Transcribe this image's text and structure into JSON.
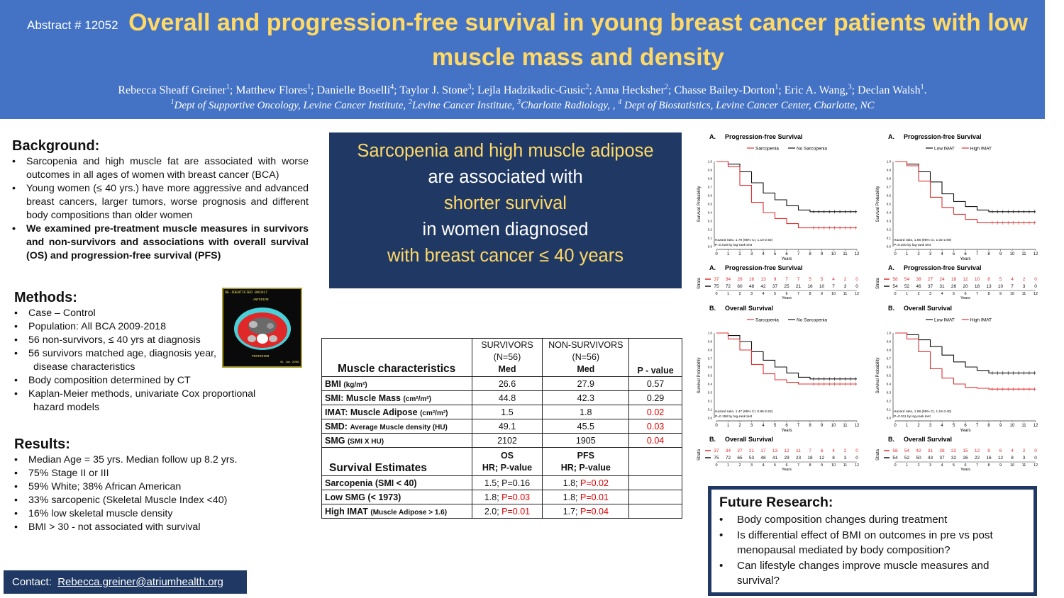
{
  "header": {
    "abstract_no": "Abstract # 12052",
    "title": "Overall and progression-free survival in young breast cancer patients with low muscle mass and density",
    "authors": [
      {
        "name": "Rebecca Sheaff Greiner",
        "sup": "1",
        "sep": "; "
      },
      {
        "name": "Matthew Flores",
        "sup": "1",
        "sep": "; "
      },
      {
        "name": "Danielle Boselli",
        "sup": "4",
        "sep": "; "
      },
      {
        "name": "Taylor J. Stone",
        "sup": "3",
        "sep": "; "
      },
      {
        "name": "Lejla Hadzikadic-Gusic",
        "sup": "2",
        "sep": "; "
      },
      {
        "name": "Anna Hecksher",
        "sup": "2",
        "sep": "; "
      },
      {
        "name": "Chasse Bailey-Dorton",
        "sup": "1",
        "sep": "; "
      },
      {
        "name": "Eric A. Wang,",
        "sup": "3",
        "sep": "; "
      },
      {
        "name": "Declan Walsh",
        "sup": "1",
        "sep": "."
      }
    ],
    "affiliations": [
      {
        "sup": "1",
        "text": "Dept of Supportive Oncology, Levine Cancer Institute, "
      },
      {
        "sup": "2",
        "text": "Levine Cancer Institute, "
      },
      {
        "sup": "3",
        "text": "Charlotte Radiology, , "
      },
      {
        "sup": "4",
        "text": " Dept of Biostatistics, Levine Cancer Center, Charlotte, NC"
      }
    ]
  },
  "background": {
    "title": "Background:",
    "items": [
      "Sarcopenia and high muscle fat are associated with worse outcomes in all ages of women with breast cancer (BCA)",
      "Young women (≤ 40 yrs.) have more aggressive and advanced breast cancers, larger tumors, worse prognosis and different body compositions than older women",
      "We examined pre-treatment muscle measures in survivors and non-survivors and associations with overall survival (OS) and progression-free survival (PFS)"
    ]
  },
  "methods": {
    "title": "Methods:",
    "items": [
      "Case – Control",
      "Population: All BCA 2009-2018",
      "56 non-survivors, ≤ 40 yrs at diagnosis",
      "56 survivors matched age, diagnosis year,",
      "disease characteristics",
      "Body composition determined by CT",
      "Kaplan-Meier methods, univariate Cox proportional",
      "hazard models"
    ]
  },
  "results": {
    "title": "Results:",
    "items": [
      "Median Age = 35 yrs. Median follow up 8.2 yrs.",
      "75% Stage II or III",
      "59% White; 38% African American",
      "33% sarcopenic (Skeletal Muscle Index <40)",
      "16% low skeletal muscle density",
      "BMI > 30 - not associated with survival"
    ]
  },
  "ct_image": {
    "top_text": "DE-IDENTIFIED 001017",
    "anterior": "ANTERIOR",
    "posterior": "POSTERIOR",
    "date": "01 Jan 2009"
  },
  "contact": {
    "label": "Contact:",
    "email": "Rebecca.greiner@atriumhealth.org"
  },
  "key_message": {
    "line1": "Sarcopenia and high muscle adipose",
    "line2": "are associated with",
    "line3": "shorter survival",
    "line4": "in women diagnosed",
    "line5": "with breast cancer ≤ 40 years"
  },
  "table": {
    "muscle_header": "Muscle characteristics",
    "survivors_label": "SURVIVORS",
    "non_survivors_label": "NON-SURVIVORS",
    "n_label": "(N=56)",
    "med_label": "Med",
    "p_label": "P - value",
    "rows": [
      {
        "name": "BMI",
        "unit": "(kg/m²)",
        "surv": "26.6",
        "non": "27.9",
        "p": "0.57"
      },
      {
        "name": "SMI:  Muscle Mass",
        "unit": "(cm²/m²)",
        "surv": "44.8",
        "non": "42.3",
        "p": "0.29"
      },
      {
        "name": "IMAT: Muscle Adipose",
        "unit": "(cm²/m²)",
        "surv": "1.5",
        "non": "1.8",
        "p": "0.02"
      },
      {
        "name": "SMD:",
        "unit": "Average Muscle density (HU)",
        "surv": "49.1",
        "non": "45.5",
        "p": "0.03"
      },
      {
        "name": "SMG",
        "unit": "(SMI X HU)",
        "surv": "2102",
        "non": "1905",
        "p": "0.04"
      }
    ],
    "survival_header": "Survival Estimates",
    "os_label": "OS",
    "pfs_label": "PFS",
    "hr_label": "HR; P-value",
    "survival_rows": [
      {
        "name": "Sarcopenia (SMI < 40)",
        "unit": "",
        "os_hr": "1.5;",
        "os_p": "P=0.16",
        "os_red": false,
        "pfs_hr": "1.8;",
        "pfs_p": "P=0.02",
        "pfs_red": true
      },
      {
        "name": "Low SMG (< 1973)",
        "unit": "",
        "os_hr": "1.8;",
        "os_p": "P=0.03",
        "os_red": true,
        "pfs_hr": "1.8;",
        "pfs_p": "P=0.01",
        "pfs_red": true
      },
      {
        "name": "High IMAT",
        "unit": "(Muscle Adipose > 1.6)",
        "os_hr": "2.0;",
        "os_p": "P=0.01",
        "os_red": true,
        "pfs_hr": "1.7;",
        "pfs_p": "P=0.04",
        "pfs_red": true
      }
    ]
  },
  "km_common": {
    "y_axis_title": "Survival Probability",
    "x_axis_title": "Years",
    "strata_label": "Strata",
    "x_ticks": [
      "0",
      "1",
      "2",
      "3",
      "4",
      "5",
      "6",
      "7",
      "8",
      "9",
      "10",
      "11",
      "12"
    ],
    "y_ticks": [
      "0.0",
      "0.1",
      "0.2",
      "0.3",
      "0.4",
      "0.5",
      "0.6",
      "0.7",
      "0.8",
      "0.9",
      "1.0"
    ]
  },
  "km_panels": [
    {
      "id": "km-a-sarc",
      "label": "A.",
      "title": "Progression-free Survival",
      "legend": [
        {
          "name": "Sarcopenia",
          "color": "#e03030"
        },
        {
          "name": "No Sarcopenia",
          "color": "#111111"
        }
      ],
      "hazard": "Hazard ratio, 1.79 (95% CI, 1.10-2.92)",
      "pval": "P=0.019 by log-rank test",
      "risk_red": [
        "37",
        "34",
        "26",
        "16",
        "13",
        "9",
        "7",
        "7",
        "5",
        "5",
        "4",
        "2",
        "0"
      ],
      "risk_black": [
        "75",
        "72",
        "60",
        "48",
        "42",
        "37",
        "25",
        "21",
        "16",
        "10",
        "7",
        "3",
        "0"
      ],
      "curve_red": [
        [
          0,
          1
        ],
        [
          1,
          0.94
        ],
        [
          2,
          0.72
        ],
        [
          3,
          0.52
        ],
        [
          4,
          0.4
        ],
        [
          5,
          0.33
        ],
        [
          6,
          0.27
        ],
        [
          7,
          0.22
        ],
        [
          8,
          0.22
        ],
        [
          12,
          0.22
        ]
      ],
      "curve_black": [
        [
          0,
          1
        ],
        [
          1,
          0.97
        ],
        [
          2,
          0.88
        ],
        [
          3,
          0.75
        ],
        [
          4,
          0.63
        ],
        [
          5,
          0.55
        ],
        [
          6,
          0.48
        ],
        [
          7,
          0.43
        ],
        [
          8,
          0.41
        ],
        [
          12,
          0.41
        ]
      ]
    },
    {
      "id": "km-a-imat",
      "label": "A.",
      "title": "Progression-free Survival",
      "legend": [
        {
          "name": "Low IMAT",
          "color": "#111111"
        },
        {
          "name": "High IMAT",
          "color": "#e03030"
        }
      ],
      "hazard": "Hazard ratio, 1.66 (95% CI, 1.02-2.69)",
      "pval": "P=0.040 by log-rank test",
      "risk_red": [
        "58",
        "54",
        "38",
        "27",
        "24",
        "18",
        "12",
        "10",
        "8",
        "5",
        "4",
        "2",
        "0"
      ],
      "risk_black": [
        "54",
        "52",
        "46",
        "37",
        "31",
        "26",
        "20",
        "18",
        "13",
        "10",
        "7",
        "3",
        "0"
      ],
      "curve_red": [
        [
          0,
          1
        ],
        [
          1,
          0.95
        ],
        [
          2,
          0.77
        ],
        [
          3,
          0.58
        ],
        [
          4,
          0.46
        ],
        [
          5,
          0.38
        ],
        [
          6,
          0.32
        ],
        [
          7,
          0.28
        ],
        [
          8,
          0.28
        ],
        [
          12,
          0.28
        ]
      ],
      "curve_black": [
        [
          0,
          1
        ],
        [
          1,
          0.97
        ],
        [
          2,
          0.88
        ],
        [
          3,
          0.76
        ],
        [
          4,
          0.62
        ],
        [
          5,
          0.53
        ],
        [
          6,
          0.47
        ],
        [
          7,
          0.43
        ],
        [
          8,
          0.41
        ],
        [
          12,
          0.41
        ]
      ]
    },
    {
      "id": "km-b-sarc",
      "label": "B.",
      "title": "Overall Survival",
      "legend": [
        {
          "name": "Sarcopenia",
          "color": "#e03030"
        },
        {
          "name": "No Sarcopenia",
          "color": "#111111"
        }
      ],
      "hazard": "Hazard ratio, 1.47 (95% CI, 0.86-2.53)",
      "pval": "P=0.158 by log-rank test",
      "risk_red": [
        "37",
        "34",
        "27",
        "21",
        "17",
        "13",
        "12",
        "11",
        "7",
        "6",
        "4",
        "2",
        "0"
      ],
      "risk_black": [
        "75",
        "72",
        "65",
        "53",
        "48",
        "41",
        "29",
        "23",
        "18",
        "12",
        "8",
        "3",
        "0"
      ],
      "curve_red": [
        [
          0,
          1
        ],
        [
          1,
          0.93
        ],
        [
          2,
          0.8
        ],
        [
          3,
          0.63
        ],
        [
          4,
          0.52
        ],
        [
          5,
          0.45
        ],
        [
          6,
          0.42
        ],
        [
          7,
          0.4
        ],
        [
          8,
          0.4
        ],
        [
          12,
          0.4
        ]
      ],
      "curve_black": [
        [
          0,
          1
        ],
        [
          1,
          0.97
        ],
        [
          2,
          0.9
        ],
        [
          3,
          0.78
        ],
        [
          4,
          0.68
        ],
        [
          5,
          0.6
        ],
        [
          6,
          0.53
        ],
        [
          7,
          0.48
        ],
        [
          8,
          0.46
        ],
        [
          12,
          0.46
        ]
      ]
    },
    {
      "id": "km-b-imat",
      "label": "B.",
      "title": "Overall Survival",
      "legend": [
        {
          "name": "Low IMAT",
          "color": "#111111"
        },
        {
          "name": "High IMAT",
          "color": "#e03030"
        }
      ],
      "hazard": "Hazard ratio, 1.98 (95% CI, 1.16-3.40)",
      "pval": "P=0.011 by log-rank test",
      "risk_red": [
        "58",
        "54",
        "42",
        "31",
        "28",
        "22",
        "15",
        "12",
        "9",
        "6",
        "4",
        "2",
        "0"
      ],
      "risk_black": [
        "54",
        "52",
        "50",
        "43",
        "37",
        "32",
        "26",
        "22",
        "16",
        "12",
        "8",
        "3",
        "0"
      ],
      "curve_red": [
        [
          0,
          1
        ],
        [
          1,
          0.93
        ],
        [
          2,
          0.78
        ],
        [
          3,
          0.58
        ],
        [
          4,
          0.47
        ],
        [
          5,
          0.4
        ],
        [
          6,
          0.36
        ],
        [
          7,
          0.35
        ],
        [
          8,
          0.34
        ],
        [
          12,
          0.34
        ]
      ],
      "curve_black": [
        [
          0,
          1
        ],
        [
          1,
          0.98
        ],
        [
          2,
          0.92
        ],
        [
          3,
          0.84
        ],
        [
          4,
          0.74
        ],
        [
          5,
          0.66
        ],
        [
          6,
          0.6
        ],
        [
          7,
          0.56
        ],
        [
          8,
          0.53
        ],
        [
          12,
          0.53
        ]
      ]
    }
  ],
  "future": {
    "title": "Future Research:",
    "items": [
      "Body composition changes during treatment",
      "Is differential effect of BMI on outcomes in pre vs post menopausal mediated by body composition?",
      "Can lifestyle changes improve muscle measures and survival?"
    ]
  }
}
